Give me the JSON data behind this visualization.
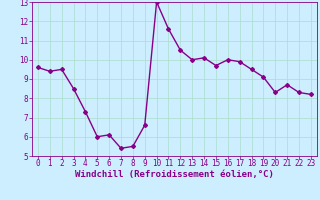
{
  "x": [
    0,
    1,
    2,
    3,
    4,
    5,
    6,
    7,
    8,
    9,
    10,
    11,
    12,
    13,
    14,
    15,
    16,
    17,
    18,
    19,
    20,
    21,
    22,
    23
  ],
  "y": [
    9.6,
    9.4,
    9.5,
    8.5,
    7.3,
    6.0,
    6.1,
    5.4,
    5.5,
    6.6,
    13.0,
    11.6,
    10.5,
    10.0,
    10.1,
    9.7,
    10.0,
    9.9,
    9.5,
    9.1,
    8.3,
    8.7,
    8.3,
    8.2
  ],
  "line_color": "#880088",
  "marker": "D",
  "marker_size": 2.0,
  "line_width": 1.0,
  "bg_color": "#cceeff",
  "grid_color": "#aaddcc",
  "xlabel": "Windchill (Refroidissement éolien,°C)",
  "xlim": [
    -0.5,
    23.5
  ],
  "ylim": [
    5,
    13
  ],
  "yticks": [
    5,
    6,
    7,
    8,
    9,
    10,
    11,
    12,
    13
  ],
  "xticks": [
    0,
    1,
    2,
    3,
    4,
    5,
    6,
    7,
    8,
    9,
    10,
    11,
    12,
    13,
    14,
    15,
    16,
    17,
    18,
    19,
    20,
    21,
    22,
    23
  ],
  "tick_color": "#880088",
  "tick_label_fontsize": 5.5,
  "xlabel_fontsize": 6.5,
  "xlabel_color": "#880088"
}
